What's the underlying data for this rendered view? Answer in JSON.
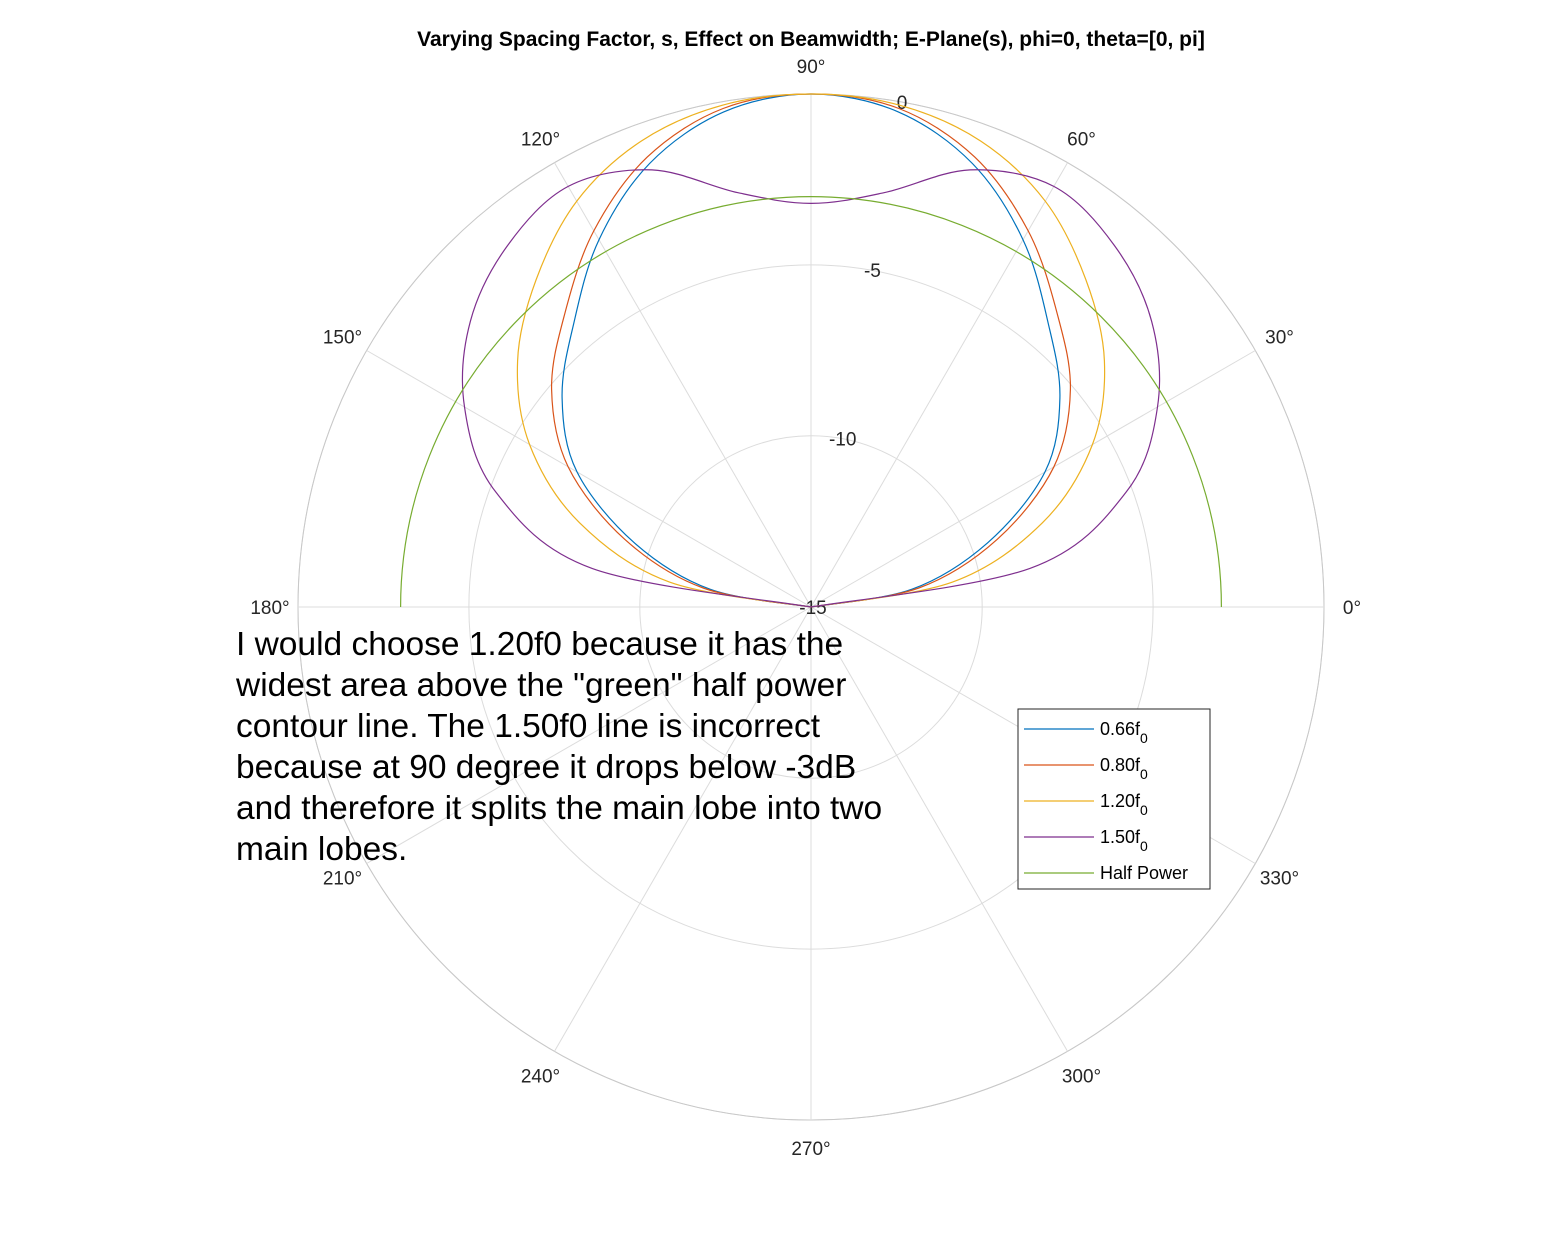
{
  "chart_data": {
    "type": "polar",
    "title": "Varying Spacing Factor, s, Effect on Beamwidth; E-Plane(s), phi=0, theta=[0, pi]",
    "r_unit": "dB",
    "rlim": [
      -15,
      0
    ],
    "r_ticks": [
      {
        "value": 0,
        "label": "0"
      },
      {
        "value": -5,
        "label": "-5"
      },
      {
        "value": -10,
        "label": "-10"
      },
      {
        "value": -15,
        "label": "-15"
      }
    ],
    "theta_ticks": [
      {
        "deg": 0,
        "label": "0°"
      },
      {
        "deg": 30,
        "label": "30°"
      },
      {
        "deg": 60,
        "label": "60°"
      },
      {
        "deg": 90,
        "label": "90°"
      },
      {
        "deg": 120,
        "label": "120°"
      },
      {
        "deg": 150,
        "label": "150°"
      },
      {
        "deg": 180,
        "label": "180°"
      },
      {
        "deg": 210,
        "label": "210°"
      },
      {
        "deg": 240,
        "label": "240°"
      },
      {
        "deg": 270,
        "label": "270°"
      },
      {
        "deg": 300,
        "label": "300°"
      },
      {
        "deg": 330,
        "label": "330°"
      }
    ],
    "grid": true,
    "legend_position": "lower-right",
    "series": [
      {
        "base": "0.66f",
        "sub": "0",
        "color": "#0072BD",
        "theta_deg": [
          0,
          10,
          20,
          30,
          40,
          50,
          60,
          70,
          80,
          90,
          100,
          110,
          120,
          130,
          140,
          150,
          160,
          170,
          180
        ],
        "r_db": [
          -15,
          -12.0,
          -9.5,
          -7.1,
          -5.5,
          -4.2,
          -2.6,
          -1.2,
          -0.3,
          0.0,
          -0.3,
          -1.2,
          -2.6,
          -4.2,
          -5.5,
          -7.1,
          -9.5,
          -12.0,
          -15
        ]
      },
      {
        "base": "0.80f",
        "sub": "0",
        "color": "#D95319",
        "theta_deg": [
          0,
          10,
          20,
          30,
          40,
          50,
          60,
          70,
          80,
          90,
          100,
          110,
          120,
          130,
          140,
          150,
          160,
          170,
          180
        ],
        "r_db": [
          -15,
          -11.8,
          -9.2,
          -6.8,
          -5.1,
          -3.8,
          -2.3,
          -1.0,
          -0.2,
          0.0,
          -0.2,
          -1.0,
          -2.3,
          -3.8,
          -5.1,
          -6.8,
          -9.2,
          -11.8,
          -15
        ]
      },
      {
        "base": "1.20f",
        "sub": "0",
        "color": "#EDB120",
        "theta_deg": [
          0,
          10,
          20,
          30,
          40,
          50,
          60,
          70,
          80,
          90,
          100,
          110,
          120,
          130,
          140,
          150,
          160,
          170,
          180
        ],
        "r_db": [
          -15,
          -10.8,
          -7.8,
          -5.5,
          -3.8,
          -2.5,
          -1.3,
          -0.5,
          -0.1,
          0.0,
          -0.1,
          -0.5,
          -1.3,
          -2.5,
          -3.8,
          -5.5,
          -7.8,
          -10.8,
          -15
        ]
      },
      {
        "base": "1.50f",
        "sub": "0",
        "color": "#7E2F8E",
        "theta_deg": [
          0,
          10,
          20,
          30,
          40,
          50,
          60,
          70,
          80,
          90,
          100,
          110,
          120,
          130,
          140,
          150,
          160,
          170,
          180
        ],
        "r_db": [
          -15,
          -8.5,
          -5.2,
          -3.3,
          -2.0,
          -1.2,
          -0.8,
          -1.4,
          -2.7,
          -3.2,
          -2.7,
          -1.4,
          -0.8,
          -1.2,
          -2.0,
          -3.3,
          -5.2,
          -8.5,
          -15
        ]
      },
      {
        "base": "Half Power",
        "sub": "",
        "color": "#77AC30",
        "theta_deg": [
          0,
          180
        ],
        "r_db": [
          -3,
          -3
        ]
      }
    ]
  },
  "annotation": {
    "lines": [
      "I would choose 1.20f0 because it has the",
      "widest area above the \"green\" half power",
      "contour line. The 1.50f0 line is incorrect",
      "because at 90 degree it drops below -3dB",
      "and therefore it splits the main lobe into two",
      "main lobes."
    ]
  }
}
